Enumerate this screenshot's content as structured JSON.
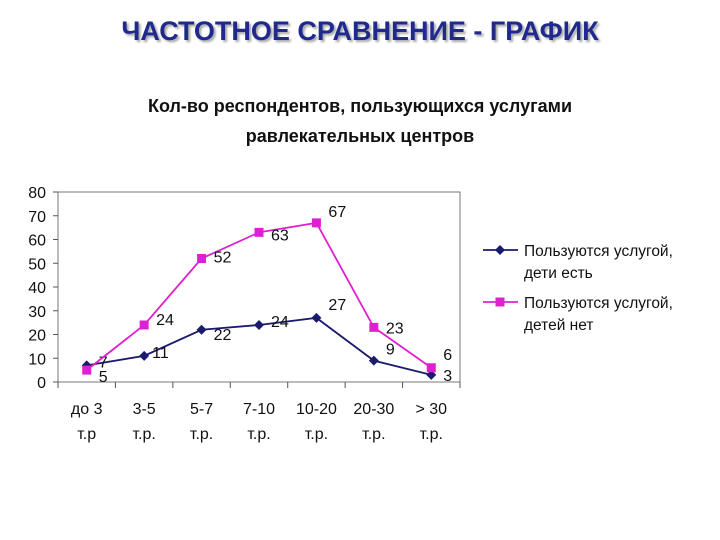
{
  "slide": {
    "title": "ЧАСТОТНОЕ СРАВНЕНИЕ - ГРАФИК"
  },
  "chart_data": {
    "type": "line",
    "title_lines": [
      "Кол-во респондентов, пользующихся услугами",
      "равлекательных центров"
    ],
    "categories": [
      [
        "до 3",
        "т.р"
      ],
      [
        "3-5",
        "т.р."
      ],
      [
        "5-7",
        "т.р."
      ],
      [
        "7-10",
        "т.р."
      ],
      [
        "10-20",
        "т.р."
      ],
      [
        "20-30",
        "т.р."
      ],
      [
        "> 30",
        "т.р."
      ]
    ],
    "ylim": [
      0,
      80
    ],
    "yticks": [
      0,
      10,
      20,
      30,
      40,
      50,
      60,
      70,
      80
    ],
    "series": [
      {
        "name": "Пользуются услугой, дети есть",
        "legend_lines": [
          "Пользуются услугой,",
          "дети есть"
        ],
        "color": "#1a1a6e",
        "marker": "diamond",
        "values": [
          7,
          11,
          22,
          24,
          27,
          9,
          3
        ]
      },
      {
        "name": "Пользуются услугой, детей нет",
        "legend_lines": [
          "Пользуются услугой,",
          "детей нет"
        ],
        "color": "#e020d0",
        "marker": "square",
        "values": [
          5,
          24,
          52,
          63,
          67,
          23,
          6
        ]
      }
    ],
    "legend_position": "right",
    "grid": false
  }
}
